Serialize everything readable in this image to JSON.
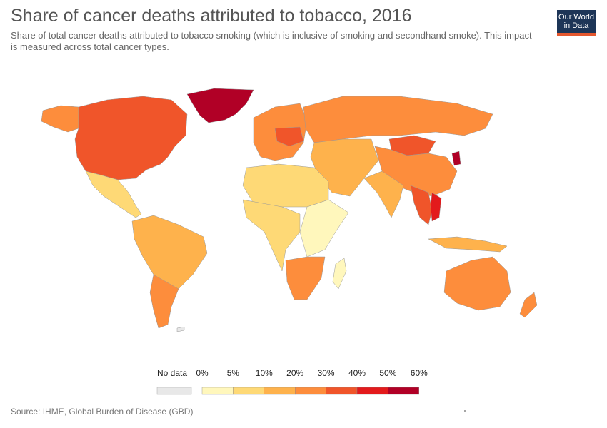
{
  "header": {
    "title": "Share of cancer deaths attributed to tobacco, 2016",
    "subtitle": "Share of total cancer deaths attributed to tobacco smoking (which is inclusive of smoking and secondhand smoke). This impact is measured across total cancer types.",
    "logo_line1": "Our World",
    "logo_line2": "in Data"
  },
  "legend": {
    "no_data_label": "No data",
    "no_data_color": "#e8e8e8",
    "ticks": [
      "0%",
      "5%",
      "10%",
      "20%",
      "30%",
      "40%",
      "50%",
      "60%"
    ],
    "colors": [
      "#fff7bc",
      "#fed976",
      "#feb24c",
      "#fd8d3c",
      "#f0552a",
      "#e31a1c",
      "#b10026"
    ]
  },
  "regions": [
    {
      "name": "Greenland",
      "bin": 6
    },
    {
      "name": "North America",
      "bin": 4
    },
    {
      "name": "Alaska",
      "bin": 3
    },
    {
      "name": "Mexico and Central America",
      "bin": 1
    },
    {
      "name": "South America",
      "bin": 2
    },
    {
      "name": "Argentina",
      "bin": 3
    },
    {
      "name": "Europe",
      "bin": 3
    },
    {
      "name": "Central Europe",
      "bin": 4
    },
    {
      "name": "Russia",
      "bin": 3
    },
    {
      "name": "Mongolia",
      "bin": 4
    },
    {
      "name": "China",
      "bin": 3
    },
    {
      "name": "North Korea",
      "bin": 6
    },
    {
      "name": "Southeast Asia",
      "bin": 4
    },
    {
      "name": "Vietnam",
      "bin": 5
    },
    {
      "name": "India",
      "bin": 2
    },
    {
      "name": "Middle East",
      "bin": 2
    },
    {
      "name": "North Africa",
      "bin": 1
    },
    {
      "name": "West Africa",
      "bin": 1
    },
    {
      "name": "East Africa",
      "bin": 0
    },
    {
      "name": "Southern Africa",
      "bin": 3
    },
    {
      "name": "Madagascar",
      "bin": 0
    },
    {
      "name": "Australia",
      "bin": 3
    },
    {
      "name": "New Zealand",
      "bin": 3
    },
    {
      "name": "Indonesia",
      "bin": 2
    },
    {
      "name": "Antarctic islands",
      "bin": null
    }
  ],
  "footer": {
    "source": "Source: IHME, Global Burden of Disease (GBD)"
  }
}
